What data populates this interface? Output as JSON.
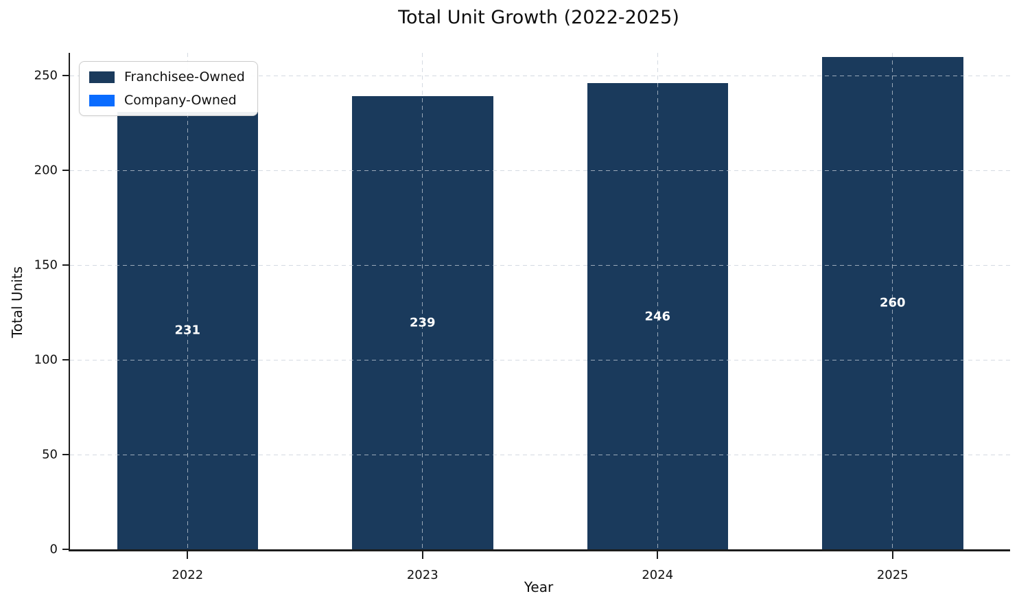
{
  "chart_data": {
    "type": "bar",
    "stacked": true,
    "title": "Total Unit Growth (2022-2025)",
    "xlabel": "Year",
    "ylabel": "Total Units",
    "categories": [
      "2022",
      "2023",
      "2024",
      "2025"
    ],
    "series": [
      {
        "name": "Franchisee-Owned",
        "color": "#1a3a5c",
        "values": [
          231,
          239,
          246,
          260
        ]
      },
      {
        "name": "Company-Owned",
        "color": "#0a6cff",
        "values": [
          0,
          0,
          0,
          0
        ]
      }
    ],
    "totals": [
      231,
      239,
      246,
      260
    ],
    "bar_labels": [
      "231",
      "239",
      "246",
      "260"
    ],
    "yticks": [
      0,
      50,
      100,
      150,
      200,
      250
    ],
    "ylim": [
      0,
      262
    ],
    "grid": "dashed, horizontal and vertical, drawn over bars",
    "legend_position": "upper-left",
    "bar_width_fraction": 0.6,
    "colors": {
      "axis_spine": "#1c1c1c",
      "gridline": "#d4dae1",
      "bar_label_text": "#ffffff",
      "background": "#ffffff"
    }
  }
}
